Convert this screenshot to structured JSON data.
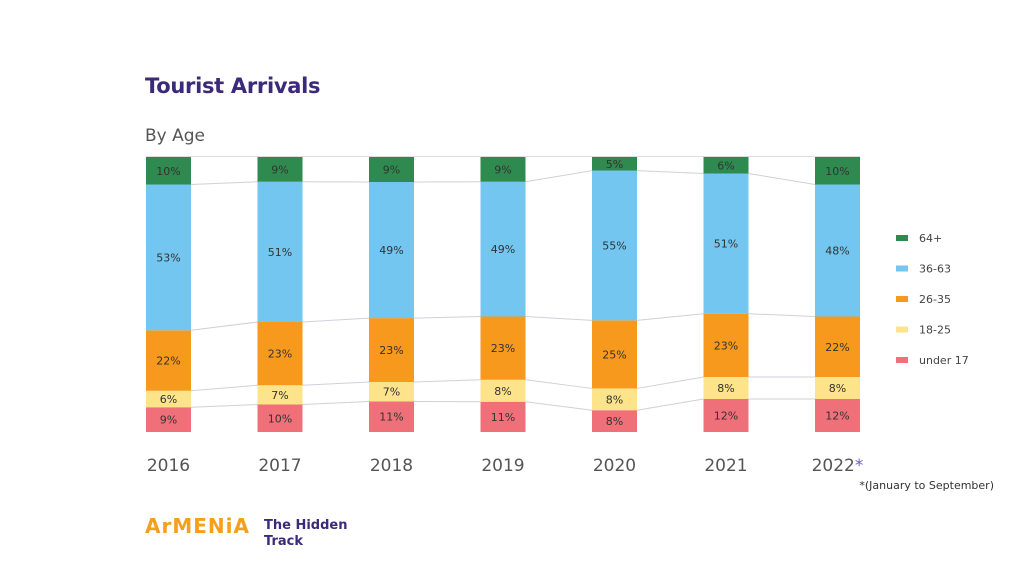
{
  "header": {
    "title": "Tourist Arrivals",
    "subtitle": "By Age"
  },
  "chart_data": {
    "type": "bar",
    "stacked": true,
    "normalized": true,
    "title": "Tourist Arrivals",
    "subtitle": "By Age",
    "xlabel": "",
    "ylabel": "",
    "categories": [
      "2016",
      "2017",
      "2018",
      "2019",
      "2020",
      "2021",
      "2022"
    ],
    "category_suffix": [
      "",
      "",
      "",
      "",
      "",
      "",
      "*"
    ],
    "series": [
      {
        "name": "under 17",
        "color": "#f0707a",
        "values": [
          9,
          10,
          11,
          11,
          8,
          12,
          12
        ]
      },
      {
        "name": "18-25",
        "color": "#fde38a",
        "values": [
          6,
          7,
          7,
          8,
          8,
          8,
          8
        ]
      },
      {
        "name": "26-35",
        "color": "#f7991c",
        "values": [
          22,
          23,
          23,
          23,
          25,
          23,
          22
        ]
      },
      {
        "name": "36-63",
        "color": "#72c6f0",
        "values": [
          53,
          51,
          49,
          49,
          55,
          51,
          48
        ]
      },
      {
        "name": "64+",
        "color": "#2f8a4f",
        "values": [
          10,
          9,
          9,
          9,
          5,
          6,
          10
        ]
      }
    ],
    "legend": [
      "64+",
      "36-63",
      "26-35",
      "18-25",
      "under 17"
    ],
    "legend_position": "right",
    "ylim": [
      0,
      100
    ],
    "grid": false,
    "connector_lines": true,
    "annotation": "*(January to September)"
  },
  "footer": {
    "logo": "ArMENiA",
    "tagline_1": "The Hidden",
    "tagline_2": "Track"
  }
}
